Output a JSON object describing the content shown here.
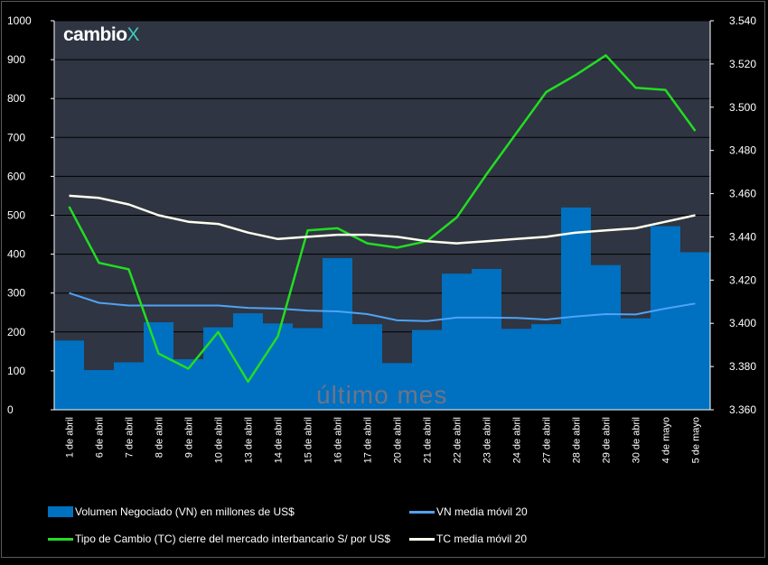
{
  "brand": {
    "name": "cambio",
    "mark": "X"
  },
  "watermark": "último mes",
  "colors": {
    "plot_bg": "#2f3542",
    "bar": "#0070c0",
    "vn_ma": "#4fa3f5",
    "tc": "#22dd22",
    "tc_ma": "#ffffee",
    "axis_text": "#ffffff"
  },
  "chart_data": {
    "type": "bar",
    "categories": [
      "1 de abril",
      "6 de abril",
      "7 de abril",
      "8 de abril",
      "9 de abril",
      "10 de abril",
      "13 de abril",
      "14 de abril",
      "15 de abril",
      "16 de abril",
      "17 de abril",
      "20 de abril",
      "21 de abril",
      "22 de abril",
      "23 de abril",
      "24 de abril",
      "27 de abril",
      "28 de abril",
      "29 de abril",
      "30 de abril",
      "4 de mayo",
      "5 de mayo"
    ],
    "y_left": {
      "ylim": [
        0,
        1000
      ],
      "ticks": [
        "0",
        "100",
        "200",
        "300",
        "400",
        "500",
        "600",
        "700",
        "800",
        "900",
        "1000"
      ]
    },
    "y_right": {
      "ylim": [
        3.36,
        3.54
      ],
      "ticks": [
        "3.360",
        "3.380",
        "3.400",
        "3.420",
        "3.440",
        "3.460",
        "3.480",
        "3.500",
        "3.520",
        "3.540"
      ]
    },
    "series": [
      {
        "name": "Volumen Negociado (VN) en millones de US$",
        "type": "bar",
        "axis": "left",
        "values": [
          178,
          102,
          122,
          225,
          130,
          212,
          248,
          222,
          210,
          390,
          220,
          120,
          205,
          350,
          362,
          208,
          220,
          520,
          372,
          235,
          472,
          405
        ]
      },
      {
        "name": "VN media móvil 20",
        "type": "line",
        "axis": "left",
        "values": [
          300,
          275,
          268,
          268,
          268,
          268,
          262,
          260,
          255,
          253,
          246,
          230,
          228,
          237,
          237,
          236,
          232,
          240,
          246,
          245,
          260,
          273
        ]
      },
      {
        "name": "Tipo de Cambio (TC) cierre del mercado interbancario S/ por US$",
        "type": "line",
        "axis": "right",
        "values": [
          3.454,
          3.428,
          3.425,
          3.386,
          3.379,
          3.396,
          3.373,
          3.394,
          3.443,
          3.444,
          3.437,
          3.435,
          3.438,
          3.449,
          3.469,
          3.488,
          3.507,
          3.515,
          3.524,
          3.509,
          3.508,
          3.489
        ]
      },
      {
        "name": "TC media móvil 20",
        "type": "line",
        "axis": "right",
        "values": [
          3.459,
          3.458,
          3.455,
          3.45,
          3.447,
          3.446,
          3.442,
          3.439,
          3.44,
          3.441,
          3.441,
          3.44,
          3.438,
          3.437,
          3.438,
          3.439,
          3.44,
          3.442,
          3.443,
          3.444,
          3.447,
          3.45
        ]
      }
    ],
    "legend": [
      {
        "label": "Volumen Negociado (VN) en millones de US$",
        "kind": "box"
      },
      {
        "label": "VN media móvil 20",
        "kind": "line"
      },
      {
        "label": "Tipo de Cambio (TC) cierre del mercado interbancario S/ por US$",
        "kind": "line"
      },
      {
        "label": "TC media móvil 20",
        "kind": "line"
      }
    ]
  }
}
